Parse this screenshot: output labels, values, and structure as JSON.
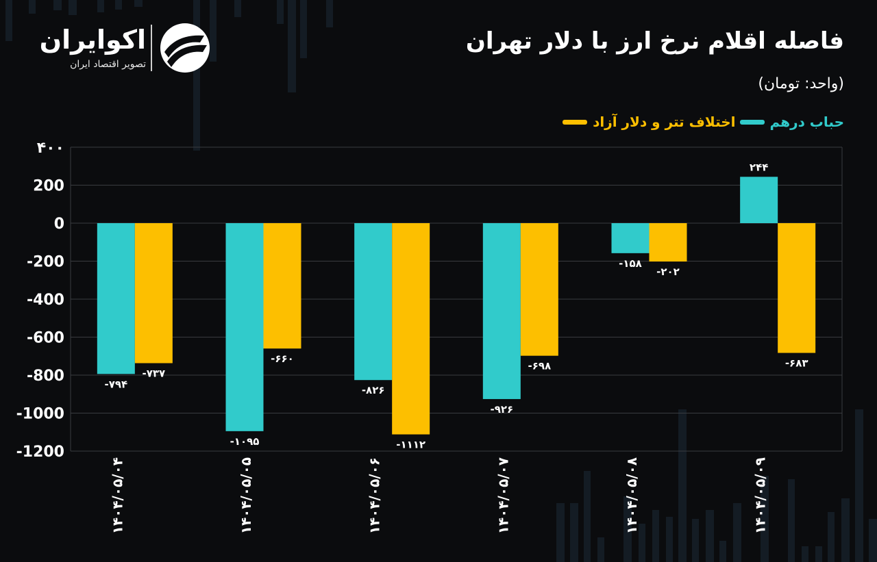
{
  "brand": {
    "name": "اکوایران",
    "tagline": "تصویر اقتصاد ایران"
  },
  "title": "فاصله اقلام نرخ ارز با دلار تهران",
  "unit_label": "(واحد: تومان)",
  "legend": [
    {
      "label": "حباب درهم",
      "color": "#31cbcb"
    },
    {
      "label": "اختلاف تتر و دلار آزاد",
      "color": "#fdbf00"
    }
  ],
  "colors": {
    "background": "#0b0c0e",
    "teal": "#31cbcb",
    "gold": "#fdbf00",
    "grid": "#3a3c40"
  },
  "chart_data": {
    "type": "bar",
    "categories": [
      "۱۴۰۴/۰۵/۰۴",
      "۱۴۰۴/۰۵/۰۵",
      "۱۴۰۴/۰۵/۰۶",
      "۱۴۰۴/۰۵/۰۷",
      "۱۴۰۴/۰۵/۰۸",
      "۱۴۰۴/۰۵/۰۹"
    ],
    "series": [
      {
        "name": "حباب درهم",
        "color": "#31cbcb",
        "values": [
          -794,
          -1095,
          -826,
          -926,
          -158,
          244
        ],
        "labels": [
          "-۷۹۴",
          "-۱۰۹۵",
          "-۸۲۶",
          "-۹۲۶",
          "-۱۵۸",
          "۲۴۴"
        ]
      },
      {
        "name": "اختلاف تتر و دلار آزاد",
        "color": "#fdbf00",
        "values": [
          -737,
          -660,
          -1112,
          -698,
          -202,
          -683
        ],
        "labels": [
          "-۷۳۷",
          "-۶۶۰",
          "-۱۱۱۲",
          "-۶۹۸",
          "-۲۰۲",
          "-۶۸۳"
        ]
      }
    ],
    "yticks": [
      400,
      200,
      0,
      -200,
      -400,
      -600,
      -800,
      -1000,
      -1200
    ],
    "ytick_labels": [
      "۴۰۰",
      "200",
      "0",
      "-200",
      "-400",
      "-600",
      "-800",
      "-1000",
      "-1200"
    ],
    "ylim": [
      -1200,
      400
    ],
    "grid": true,
    "legend_position": "top-right"
  }
}
